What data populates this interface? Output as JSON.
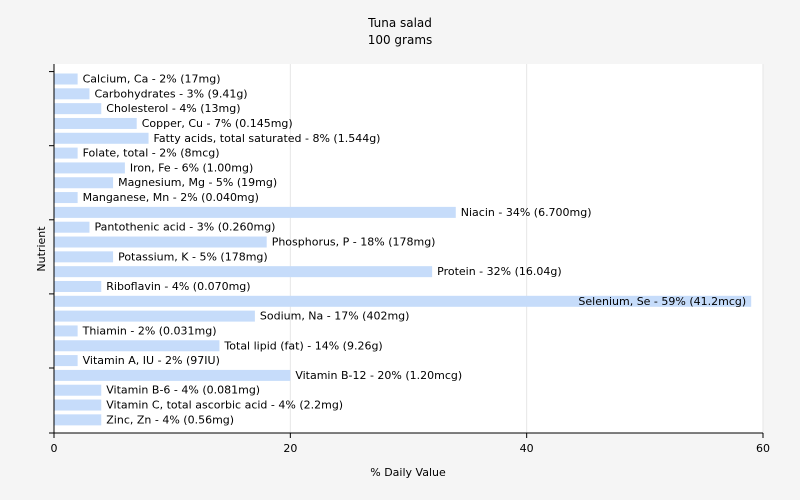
{
  "chart_data": {
    "type": "bar",
    "orientation": "horizontal",
    "title": "Tuna salad",
    "subtitle": "100 grams",
    "xlabel": "% Daily Value",
    "ylabel": "Nutrient",
    "xlim": [
      0,
      60
    ],
    "xticks": [
      "0",
      "20",
      "40",
      "60"
    ],
    "grid": true,
    "bar_color": "#c6dcfa",
    "categories": [
      "Calcium, Ca",
      "Carbohydrates",
      "Cholesterol",
      "Copper, Cu",
      "Fatty acids, total saturated",
      "Folate, total",
      "Iron, Fe",
      "Magnesium, Mg",
      "Manganese, Mn",
      "Niacin",
      "Pantothenic acid",
      "Phosphorus, P",
      "Potassium, K",
      "Protein",
      "Riboflavin",
      "Selenium, Se",
      "Sodium, Na",
      "Thiamin",
      "Total lipid (fat)",
      "Vitamin A, IU",
      "Vitamin B-12",
      "Vitamin B-6",
      "Vitamin C, total ascorbic acid",
      "Zinc, Zn"
    ],
    "values": [
      2,
      3,
      4,
      7,
      8,
      2,
      6,
      5,
      2,
      34,
      3,
      18,
      5,
      32,
      4,
      59,
      17,
      2,
      14,
      2,
      20,
      4,
      4,
      4
    ],
    "labels": [
      "Calcium, Ca - 2% (17mg)",
      "Carbohydrates - 3% (9.41g)",
      "Cholesterol - 4% (13mg)",
      "Copper, Cu - 7% (0.145mg)",
      "Fatty acids, total saturated - 8% (1.544g)",
      "Folate, total - 2% (8mcg)",
      "Iron, Fe - 6% (1.00mg)",
      "Magnesium, Mg - 5% (19mg)",
      "Manganese, Mn - 2% (0.040mg)",
      "Niacin - 34% (6.700mg)",
      "Pantothenic acid - 3% (0.260mg)",
      "Phosphorus, P - 18% (178mg)",
      "Potassium, K - 5% (178mg)",
      "Protein - 32% (16.04g)",
      "Riboflavin - 4% (0.070mg)",
      "Selenium, Se - 59% (41.2mcg)",
      "Sodium, Na - 17% (402mg)",
      "Thiamin - 2% (0.031mg)",
      "Total lipid (fat) - 14% (9.26g)",
      "Vitamin A, IU - 2% (97IU)",
      "Vitamin B-12 - 20% (1.20mcg)",
      "Vitamin B-6 - 4% (0.081mg)",
      "Vitamin C, total ascorbic acid - 4% (2.2mg)",
      "Zinc, Zn - 4% (0.56mg)"
    ]
  }
}
